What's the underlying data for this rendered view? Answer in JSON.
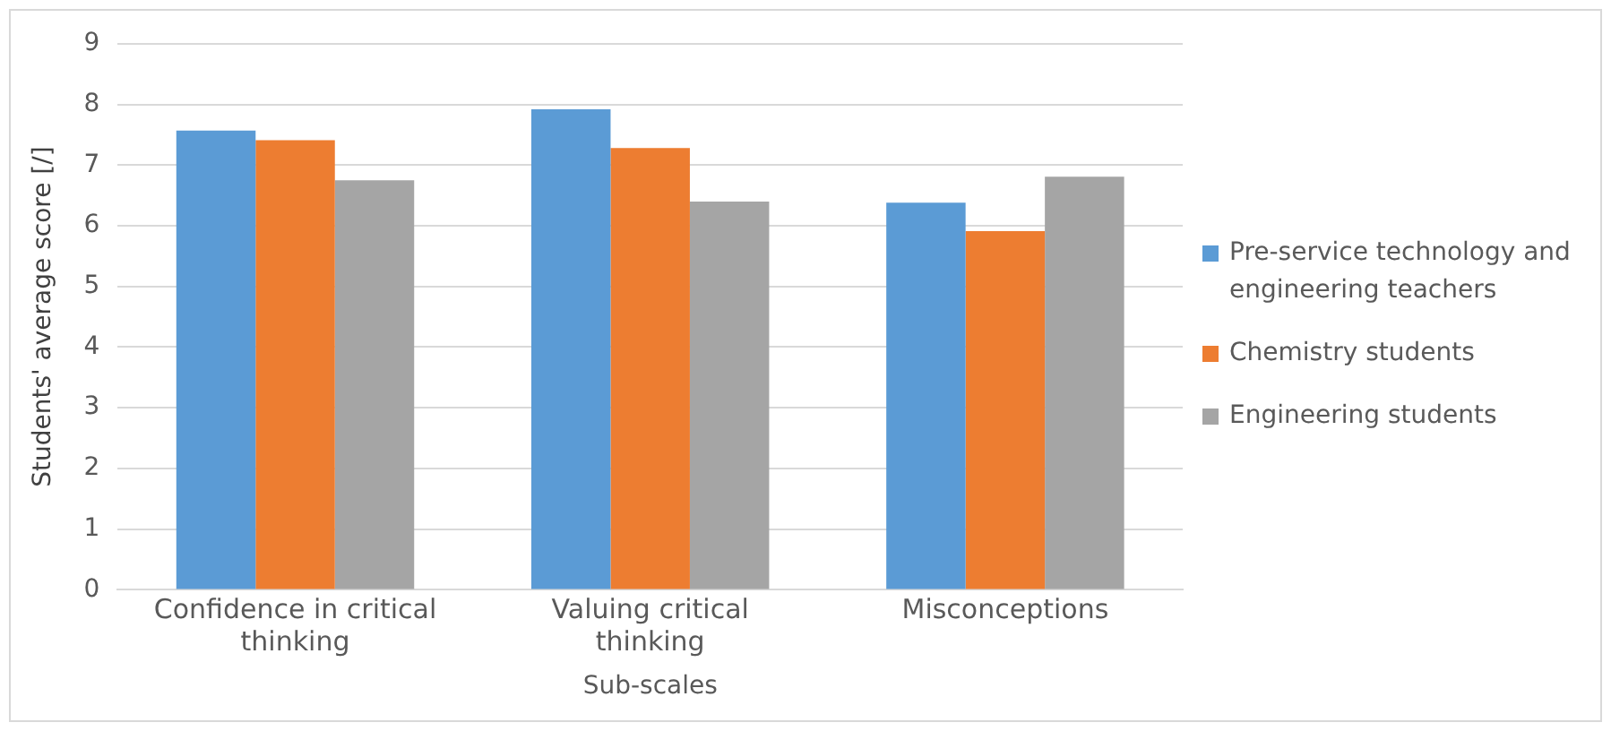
{
  "chart_data": {
    "type": "bar",
    "xlabel": "Sub-scales",
    "ylabel": "Students' average score [/]",
    "categories": [
      "Confidence in critical thinking",
      "Valuing critical thinking",
      "Misconceptions"
    ],
    "series": [
      {
        "name": "Pre-service technology and engineering teachers",
        "color": "#5b9bd5",
        "values": [
          7.57,
          7.92,
          6.38
        ]
      },
      {
        "name": "Chemistry students",
        "color": "#ed7d31",
        "values": [
          7.41,
          7.28,
          5.91
        ]
      },
      {
        "name": "Engineering students",
        "color": "#a5a5a5",
        "values": [
          6.75,
          6.4,
          6.81
        ]
      }
    ],
    "ylim": [
      0,
      9
    ],
    "yticks": [
      0,
      1,
      2,
      3,
      4,
      5,
      6,
      7,
      8,
      9
    ],
    "grid": "y",
    "legend": "right"
  }
}
